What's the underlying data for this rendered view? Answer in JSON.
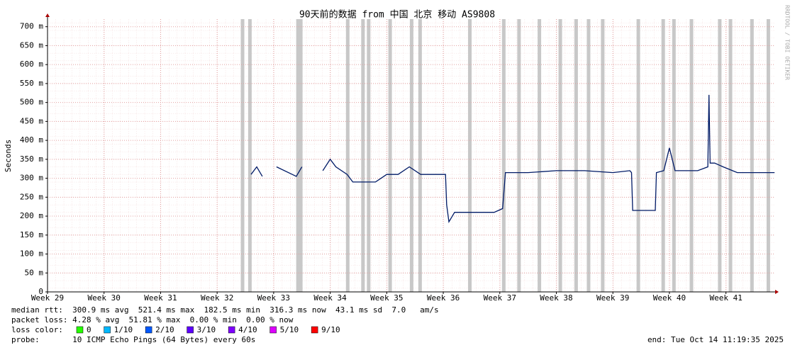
{
  "chart_data": {
    "type": "line",
    "title": "90天前的数据 from 中国 北京 移动 AS9808",
    "y_label": "Seconds",
    "watermark": "RRDTOOL / TOBI OETIKER",
    "xlim": [
      29,
      41.87
    ],
    "xticks": [
      {
        "value": 29,
        "label": "Week 29"
      },
      {
        "value": 30,
        "label": "Week 30"
      },
      {
        "value": 31,
        "label": "Week 31"
      },
      {
        "value": 32,
        "label": "Week 32"
      },
      {
        "value": 33,
        "label": "Week 33"
      },
      {
        "value": 34,
        "label": "Week 34"
      },
      {
        "value": 35,
        "label": "Week 35"
      },
      {
        "value": 36,
        "label": "Week 36"
      },
      {
        "value": 37,
        "label": "Week 37"
      },
      {
        "value": 38,
        "label": "Week 38"
      },
      {
        "value": 39,
        "label": "Week 39"
      },
      {
        "value": 40,
        "label": "Week 40"
      },
      {
        "value": 41,
        "label": "Week 41"
      }
    ],
    "ylim": [
      0,
      0.72
    ],
    "yticks": [
      0,
      {
        "value": 0.05,
        "label": "50 m"
      },
      {
        "value": 0.1,
        "label": "100 m"
      },
      {
        "value": 0.15,
        "label": "150 m"
      },
      {
        "value": 0.2,
        "label": "200 m"
      },
      {
        "value": 0.25,
        "label": "250 m"
      },
      {
        "value": 0.3,
        "label": "300 m"
      },
      {
        "value": 0.35,
        "label": "350 m"
      },
      {
        "value": 0.4,
        "label": "400 m"
      },
      {
        "value": 0.45,
        "label": "450 m"
      },
      {
        "value": 0.5,
        "label": "500 m"
      },
      {
        "value": 0.55,
        "label": "550 m"
      },
      {
        "value": 0.6,
        "label": "600 m"
      },
      {
        "value": 0.65,
        "label": "650 m"
      },
      {
        "value": 0.7,
        "label": "700 m"
      }
    ],
    "grid": true,
    "series": [
      {
        "name": "median rtt",
        "color": "#001a66",
        "x": [
          32.6,
          32.7,
          32.8,
          32.9,
          33.05,
          33.4,
          33.5,
          33.55,
          33.87,
          34.0,
          34.1,
          34.3,
          34.4,
          34.6,
          34.8,
          35.0,
          35.2,
          35.4,
          35.6,
          35.9,
          36.04,
          36.06,
          36.1,
          36.2,
          36.5,
          36.9,
          37.05,
          37.1,
          37.5,
          38.0,
          38.5,
          39.0,
          39.3,
          39.33,
          39.35,
          39.6,
          39.75,
          39.77,
          39.9,
          40.0,
          40.1,
          40.5,
          40.68,
          40.7,
          40.72,
          40.8,
          40.95,
          41.2,
          41.5,
          41.86
        ],
        "values": [
          0.31,
          0.33,
          0.305,
          null,
          0.33,
          0.305,
          0.33,
          null,
          0.32,
          0.35,
          0.33,
          0.31,
          0.29,
          0.29,
          0.29,
          0.31,
          0.31,
          0.33,
          0.31,
          0.31,
          0.31,
          0.23,
          0.185,
          0.21,
          0.21,
          0.21,
          0.22,
          0.315,
          0.315,
          0.32,
          0.32,
          0.315,
          0.32,
          0.315,
          0.215,
          0.215,
          0.215,
          0.315,
          0.32,
          0.38,
          0.32,
          0.32,
          0.33,
          0.52,
          0.34,
          0.34,
          0.33,
          0.315,
          0.315,
          0.315
        ]
      }
    ],
    "loss_periods": {
      "color": "#c8c8c8",
      "x": [
        32.45,
        32.58,
        33.43,
        33.48,
        34.31,
        34.58,
        34.68,
        35.06,
        35.44,
        35.59,
        36.47,
        37.07,
        37.34,
        37.7,
        38.07,
        38.35,
        38.57,
        38.82,
        39.45,
        39.89,
        40.08,
        40.39,
        40.89,
        41.08,
        41.46,
        41.75
      ]
    },
    "stats": [
      "median rtt:  300.9 ms avg  521.4 ms max  182.5 ms min  316.3 ms now  43.1 ms sd  7.0   am/s",
      "packet loss: 4.28 % avg  51.81 % max  0.00 % min  0.00 % now"
    ],
    "loss_legend": {
      "label": "loss color:",
      "items": [
        {
          "name": "0",
          "color": "#26ff00"
        },
        {
          "name": "1/10",
          "color": "#00b8ff"
        },
        {
          "name": "2/10",
          "color": "#0059ff"
        },
        {
          "name": "3/10",
          "color": "#5e00ff"
        },
        {
          "name": "4/10",
          "color": "#7e00ff"
        },
        {
          "name": "5/10",
          "color": "#dd00ff"
        },
        {
          "name": "9/10",
          "color": "#ff0000"
        }
      ]
    },
    "probe": "probe:       10 ICMP Echo Pings (64 Bytes) every 60s",
    "end": "end: Tue Oct 14 11:19:35 2025"
  }
}
